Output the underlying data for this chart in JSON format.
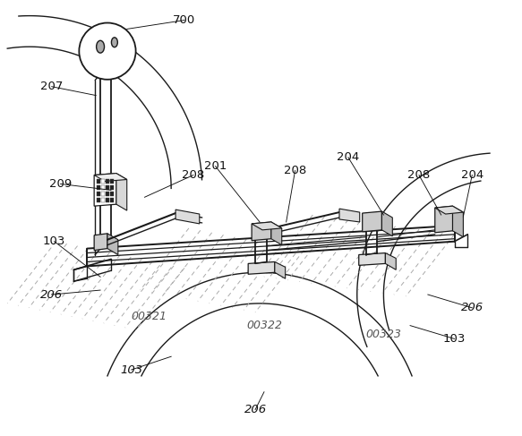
{
  "background_color": "#ffffff",
  "line_color": "#1a1a1a",
  "dashed_color": "#888888",
  "figsize": [
    5.83,
    4.87
  ],
  "dpi": 100
}
